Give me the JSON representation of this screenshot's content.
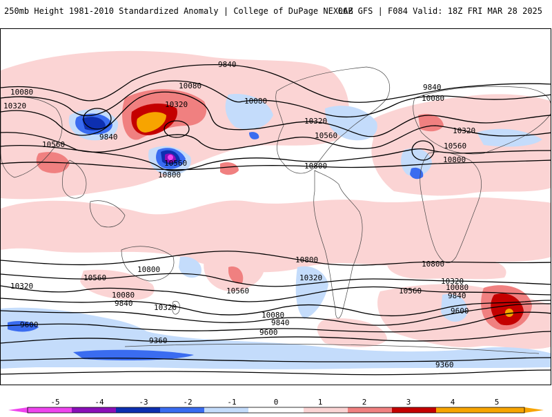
{
  "header": {
    "title_left": "250mb Height 1981-2010 Standardized Anomaly | College of DuPage NEXLAB",
    "title_right": "06Z GFS | F084 Valid: 18Z FRI MAR 28 2025"
  },
  "colors": {
    "neg5": "#ee44ee",
    "neg4": "#8a0fb8",
    "neg3": "#0d2fb0",
    "neg2": "#3a6cf0",
    "neg1": "#c4dcfb",
    "zero": "#ffffff",
    "pos1": "#fbd4d4",
    "pos2": "#f08080",
    "pos3": "#c40000",
    "pos4": "#f7a400",
    "pos5": "#f7a400"
  },
  "colorbar": {
    "ticks": [
      "-5",
      "-4",
      "-3",
      "-2",
      "-1",
      "0",
      "1",
      "2",
      "3",
      "4",
      "5"
    ]
  },
  "contour_labels": {
    "l1": "9840",
    "l2": "10080",
    "l3": "10320",
    "l4": "9840",
    "l5": "10080",
    "l6": "10320",
    "l7": "10560",
    "l8": "9840",
    "l9": "10560",
    "l10": "10800",
    "l11": "10080",
    "l12": "10320",
    "l13": "10560",
    "l14": "10800",
    "l15": "9840",
    "l16": "10080",
    "l17": "10320",
    "l18": "10560",
    "l19": "10800",
    "s1": "10800",
    "s2": "10560",
    "s3": "10320",
    "s4": "10080",
    "s5": "9840",
    "s6": "10320",
    "s7": "10560",
    "s8": "10800",
    "s9": "10320",
    "s10": "10560",
    "s11": "10080",
    "s12": "9840",
    "s13": "9600",
    "s14": "9360",
    "s15": "10800",
    "s16": "10560",
    "s17": "10320",
    "s18": "10080",
    "s19": "9840",
    "s20": "9600",
    "s21": "9360",
    "s22": "9600"
  }
}
